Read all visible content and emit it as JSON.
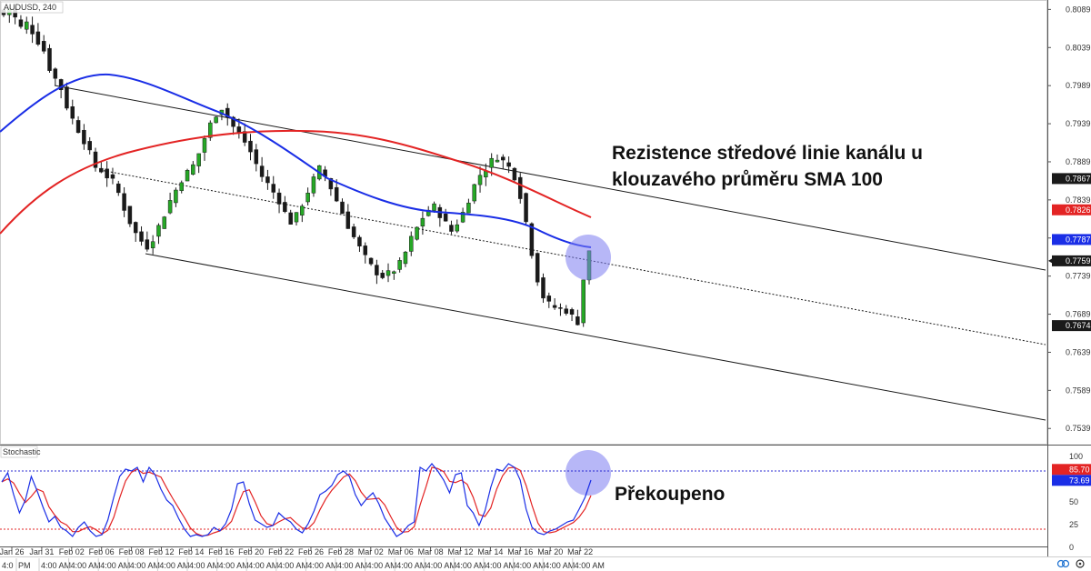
{
  "chart_data": {
    "type": "candlestick",
    "symbol_label": "AUDUSD, 240",
    "x_ticks": [
      "Jan 26",
      "Jan 31",
      "Feb 02",
      "Feb 06",
      "Feb 08",
      "Feb 12",
      "Feb 14",
      "Feb 16",
      "Feb 20",
      "Feb 22",
      "Feb 26",
      "Feb 28",
      "Mar 02",
      "Mar 06",
      "Mar 08",
      "Mar 12",
      "Mar 14",
      "Mar 16",
      "Mar 20",
      "Mar 22"
    ],
    "time_labels": [
      "4:0",
      "PM",
      "4:00 AM",
      "4:00 AM",
      "4:00 AM",
      "4:00 AM",
      "4:00 AM",
      "4:00 AM",
      "4:00 AM",
      "4:00 AM",
      "4:00 AM",
      "4:00 AM",
      "4:00 AM",
      "4:00 AM",
      "4:00 AM",
      "4:00 AM",
      "4:00 AM",
      "4:00 AM",
      "4:00 AM",
      "4:00 AM",
      "4:00 AM"
    ],
    "y_ticks": [
      "0.8089",
      "0.8039",
      "0.7989",
      "0.7939",
      "0.7889",
      "0.7839",
      "0.7789",
      "0.7739",
      "0.7689",
      "0.7639",
      "0.7589",
      "0.7539"
    ],
    "price_range": [
      0.7519,
      0.8099
    ],
    "price_badges": [
      {
        "value": "0.7867",
        "color": "#1a1a1a"
      },
      {
        "value": "0.7826",
        "color": "#e32424"
      },
      {
        "value": "0.7787",
        "color": "#1a2ee6"
      },
      {
        "value": "0.7759",
        "color": "#1a1a1a"
      },
      {
        "value": "0.7674",
        "color": "#1a1a1a"
      }
    ],
    "candle_colors": {
      "up": "#26a826",
      "down": "#1a1a1a"
    },
    "sma100_color": "#1a2ee6",
    "sma200_color": "#e32424",
    "close_path": [
      0.8082,
      0.8091,
      0.8078,
      0.8065,
      0.8071,
      0.806,
      0.8047,
      0.8035,
      0.8012,
      0.7998,
      0.7985,
      0.7962,
      0.7945,
      0.7931,
      0.7917,
      0.79,
      0.7882,
      0.7878,
      0.787,
      0.7863,
      0.7848,
      0.7828,
      0.781,
      0.7795,
      0.7785,
      0.7778,
      0.7789,
      0.7804,
      0.782,
      0.7838,
      0.7852,
      0.7866,
      0.7875,
      0.7884,
      0.79,
      0.792,
      0.7938,
      0.7952,
      0.796,
      0.7948,
      0.7935,
      0.7926,
      0.7915,
      0.7902,
      0.7886,
      0.787,
      0.786,
      0.7849,
      0.7838,
      0.7822,
      0.781,
      0.7818,
      0.7834,
      0.785,
      0.7866,
      0.788,
      0.787,
      0.7855,
      0.7838,
      0.7822,
      0.7805,
      0.779,
      0.7776,
      0.7763,
      0.7752,
      0.7744,
      0.7739,
      0.7742,
      0.7747,
      0.7755,
      0.777,
      0.7788,
      0.7802,
      0.7816,
      0.7826,
      0.783,
      0.782,
      0.7808,
      0.7798,
      0.7809,
      0.7822,
      0.784,
      0.7858,
      0.7872,
      0.788,
      0.789,
      0.7896,
      0.789,
      0.7882,
      0.787,
      0.7845,
      0.781,
      0.777,
      0.7735,
      0.7712,
      0.7702,
      0.7698,
      0.7696,
      0.7694,
      0.7686,
      0.7679,
      0.7735,
      0.777
    ],
    "stochastic": {
      "title": "Stochastic",
      "y_ticks": [
        "100",
        "75",
        "50",
        "25",
        "0"
      ],
      "levels": [
        80,
        20
      ],
      "k_color": "#1a2ee6",
      "d_color": "#e32424",
      "value_badges": [
        {
          "value": "85.70",
          "color": "#e32424"
        },
        {
          "value": "73.69",
          "color": "#1a2ee6"
        }
      ],
      "k": [
        72,
        82,
        58,
        38,
        52,
        78,
        62,
        44,
        28,
        34,
        22,
        18,
        12,
        22,
        28,
        18,
        12,
        14,
        30,
        55,
        78,
        86,
        84,
        88,
        72,
        88,
        80,
        64,
        52,
        46,
        32,
        20,
        12,
        14,
        12,
        14,
        22,
        18,
        26,
        42,
        70,
        72,
        48,
        30,
        26,
        22,
        24,
        38,
        32,
        28,
        20,
        16,
        26,
        40,
        58,
        62,
        68,
        80,
        84,
        78,
        58,
        46,
        54,
        60,
        48,
        32,
        22,
        12,
        16,
        24,
        28,
        88,
        84,
        92,
        84,
        74,
        60,
        80,
        82,
        46,
        38,
        24,
        40,
        66,
        86,
        84,
        92,
        88,
        74,
        42,
        22,
        16,
        14,
        18,
        20,
        24,
        28,
        30,
        42,
        55,
        74
      ]
    },
    "annotations": {
      "resistance": [
        "Rezistence středové linie kanálu u",
        "klouzavého průměru SMA 100"
      ],
      "overbought": "Překoupeno"
    }
  }
}
